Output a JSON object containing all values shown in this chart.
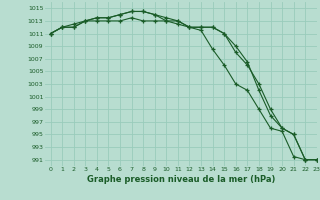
{
  "x": [
    0,
    1,
    2,
    3,
    4,
    5,
    6,
    7,
    8,
    9,
    10,
    11,
    12,
    13,
    14,
    15,
    16,
    17,
    18,
    19,
    20,
    21,
    22,
    23
  ],
  "line1": [
    1011,
    1012,
    1012,
    1013,
    1013,
    1013,
    1013,
    1013.5,
    1013,
    1013,
    1013,
    1013,
    1012,
    1011.5,
    1008.5,
    1006,
    1003,
    1002,
    999,
    996,
    995.5,
    991.5,
    991,
    991
  ],
  "line2": [
    1011,
    1012,
    1012,
    1013,
    1013.5,
    1013.5,
    1014,
    1014.5,
    1014.5,
    1014,
    1013.5,
    1013,
    1012,
    1012,
    1012,
    1011,
    1008,
    1006,
    1003,
    999,
    996,
    995,
    991,
    991
  ],
  "line3": [
    1011,
    1012,
    1012.5,
    1013,
    1013.5,
    1013.5,
    1014,
    1014.5,
    1014.5,
    1014,
    1013,
    1012.5,
    1012,
    1012,
    1012,
    1011,
    1009,
    1006.5,
    1002,
    998,
    996,
    995,
    991,
    991
  ],
  "bg_color": "#b8ddd0",
  "grid_major_color": "#99ccbb",
  "grid_minor_color": "#aad4c4",
  "line_color": "#1a5c28",
  "marker": "+",
  "ylabel_vals": [
    991,
    993,
    995,
    997,
    999,
    1001,
    1003,
    1005,
    1007,
    1009,
    1011,
    1013,
    1015
  ],
  "xlabel": "Graphe pression niveau de la mer (hPa)",
  "ylim": [
    990,
    1016
  ],
  "xlim": [
    -0.5,
    23
  ]
}
